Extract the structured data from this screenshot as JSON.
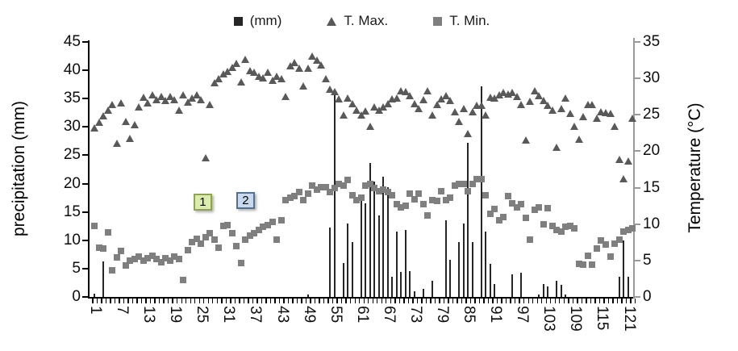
{
  "chart": {
    "legend": [
      {
        "label": "(mm)",
        "marker": "square",
        "color": "#262626"
      },
      {
        "label": "T. Max.",
        "marker": "triangle",
        "color": "#595959"
      },
      {
        "label": "T. Min.",
        "marker": "square",
        "color": "#7f7f7f"
      }
    ],
    "left_axis": {
      "title": "precipitation (mm)",
      "min": 0,
      "max": 45,
      "step": 5,
      "color": "#000000"
    },
    "right_axis": {
      "title": "Temperature (°C)",
      "min": 0,
      "max": 35,
      "step": 5,
      "color": "#9a9a9a"
    },
    "x_axis": {
      "tick_labels": [
        "1",
        "7",
        "13",
        "19",
        "25",
        "31",
        "37",
        "43",
        "49",
        "55",
        "61",
        "67",
        "73",
        "79",
        "85",
        "91",
        "97",
        "103",
        "109",
        "115",
        "121"
      ],
      "tick_interval": 6
    }
  },
  "annotations": [
    {
      "label": "1",
      "day": 25.3,
      "temp": 13.1,
      "fill": "#dcebae",
      "border": "#8fa352"
    },
    {
      "label": "2",
      "day": 34.9,
      "temp": 13.3,
      "fill": "#c9d9ed",
      "border": "#537292"
    }
  ],
  "chart_data": {
    "type": "combo",
    "x_range": [
      1,
      122
    ],
    "series": [
      {
        "name": "(mm)",
        "type": "bar",
        "axis": "left",
        "color": "#262626",
        "values": [
          0.5,
          0,
          6.3,
          0,
          0,
          0,
          0,
          0,
          0,
          0,
          0,
          0,
          0,
          0,
          0,
          0,
          0,
          0,
          0,
          0,
          0,
          0,
          0,
          0,
          0,
          0,
          0,
          0,
          0,
          0,
          0,
          0,
          0,
          0,
          0,
          0,
          0,
          0,
          0,
          0,
          0,
          0,
          0,
          0,
          0,
          0,
          0,
          0,
          0.4,
          0,
          0,
          0,
          0,
          12.3,
          36.2,
          0,
          6,
          13,
          9.7,
          0,
          17.3,
          16.5,
          23.6,
          20.4,
          14.4,
          21.2,
          19.3,
          3.5,
          11.5,
          4.4,
          11.8,
          4.5,
          1,
          0,
          1.4,
          0,
          2.8,
          0,
          0,
          13.5,
          6.5,
          0,
          9.7,
          13,
          27.2,
          9.7,
          0,
          37.2,
          11.6,
          5.9,
          2.3,
          0,
          0,
          0,
          4,
          0,
          4.3,
          0,
          0,
          0,
          0.4,
          2.3,
          1.9,
          0,
          2.8,
          2.1,
          0.4,
          0,
          0,
          0,
          0,
          0,
          0,
          0,
          0,
          0,
          0,
          0,
          3.5,
          10,
          3.5,
          0
        ]
      },
      {
        "name": "T. Max.",
        "type": "scatter-triangle",
        "axis": "right",
        "color": "#595959",
        "values": [
          23.2,
          23.9,
          24.8,
          25.6,
          26.4,
          21,
          26.6,
          24,
          21.7,
          23.6,
          26,
          27.4,
          26.6,
          27.7,
          27,
          27.5,
          26.9,
          27.5,
          27,
          25.6,
          27.7,
          26.7,
          27.2,
          27.7,
          27,
          19,
          26.4,
          29.3,
          29.9,
          30.6,
          30.9,
          31.5,
          32,
          29.5,
          32.6,
          31,
          30.8,
          30.2,
          30,
          30.8,
          29.7,
          30.2,
          29.9,
          27.5,
          31.7,
          32.1,
          31.3,
          28.9,
          31.3,
          33,
          32.4,
          31.8,
          29.9,
          28.5,
          28.1,
          27.1,
          24.9,
          27.2,
          26.5,
          25.6,
          24.9,
          25.5,
          23.4,
          26,
          25.6,
          26,
          26.5,
          27.1,
          27.3,
          28.2,
          28.1,
          27.6,
          26.5,
          25.8,
          27,
          28.2,
          24.9,
          26.4,
          27.1,
          27.6,
          26.9,
          25.4,
          24,
          25.8,
          22.4,
          25.4,
          26.2,
          26.2,
          24.9,
          27.4,
          27.3,
          27.7,
          28,
          27.8,
          28,
          27.5,
          26.4,
          21.5,
          26.8,
          28.2,
          27.6,
          26.9,
          26.2,
          25.6,
          20.5,
          25.8,
          27.3,
          25.1,
          23.4,
          21.6,
          24.7,
          26.4,
          26.4,
          24.5,
          25.4,
          25.2,
          25.1,
          23.4,
          18.8,
          16.2,
          18.6,
          24.5
        ]
      },
      {
        "name": "T. Min.",
        "type": "scatter-square",
        "axis": "right",
        "color": "#7f7f7f",
        "values": [
          9.7,
          6.8,
          6.6,
          8.9,
          3.6,
          5.4,
          6.3,
          4.3,
          5,
          5.2,
          5.5,
          5,
          5.3,
          5.6,
          5.2,
          4.8,
          5.3,
          5,
          5.5,
          5.2,
          2.3,
          6.4,
          7.5,
          8,
          7.3,
          8.2,
          8.7,
          7.9,
          6.8,
          9.7,
          9.9,
          8.8,
          7,
          4.6,
          7.9,
          8.4,
          8.8,
          9.2,
          9.6,
          9.9,
          10.3,
          7.9,
          10.5,
          13.3,
          13.6,
          13.8,
          14.4,
          13.3,
          14.2,
          15.3,
          14.7,
          15.1,
          15.1,
          14.4,
          14.9,
          15.5,
          15.3,
          16.1,
          14,
          13.3,
          13.6,
          15.3,
          15.5,
          15,
          14.5,
          14.7,
          14.4,
          14,
          12.7,
          12.3,
          12.5,
          14.2,
          13.4,
          14.2,
          12.7,
          11.2,
          13.3,
          13.2,
          14.5,
          13.3,
          13.6,
          15.3,
          15.5,
          15.5,
          14.5,
          15.5,
          16.2,
          16.2,
          14,
          11.4,
          12.1,
          10.5,
          11,
          13.8,
          12.9,
          12.3,
          12.7,
          10.9,
          7.9,
          12,
          12.3,
          10,
          12.2,
          9.7,
          9.2,
          9,
          9.6,
          9.7,
          9.4,
          4.5,
          4.4,
          5.7,
          4.4,
          6.6,
          7.7,
          7.2,
          5.5,
          7.3,
          7.9,
          9,
          9.2,
          9.4
        ]
      }
    ]
  }
}
